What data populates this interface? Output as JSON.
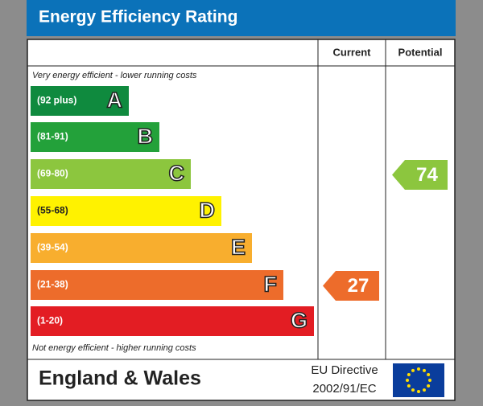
{
  "header": {
    "title": "Energy Efficiency Rating"
  },
  "columns": {
    "current": "Current",
    "potential": "Potential"
  },
  "top_note": "Very energy efficient - lower running costs",
  "bands": [
    {
      "range": "(92 plus)",
      "letter": "A",
      "color": "#0f8a3e"
    },
    {
      "range": "(81-91)",
      "letter": "B",
      "color": "#23a13a"
    },
    {
      "range": "(69-80)",
      "letter": "C",
      "color": "#8cc63e",
      "potential": 74
    },
    {
      "range": "(55-68)",
      "letter": "D",
      "color": "#fff200"
    },
    {
      "range": "(39-54)",
      "letter": "E",
      "color": "#f8ae2e"
    },
    {
      "range": "(21-38)",
      "letter": "F",
      "color": "#ed6c2b",
      "current": 27
    },
    {
      "range": "(1-20)",
      "letter": "G",
      "color": "#e31d23"
    }
  ],
  "bottom_note": "Not energy efficient - higher running costs",
  "footer": {
    "region": "England & Wales",
    "directive": "EU Directive",
    "directive_code": "2002/91/EC"
  }
}
